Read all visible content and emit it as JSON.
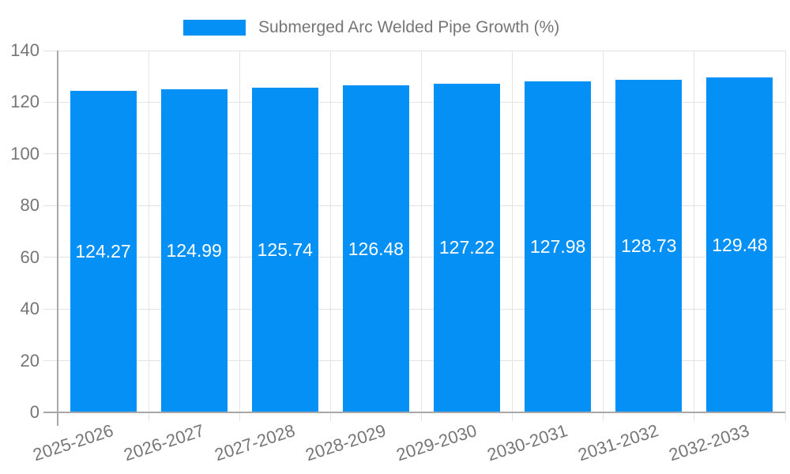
{
  "legend": {
    "label": "Submerged Arc Welded Pipe Growth (%)"
  },
  "chart_data": {
    "type": "bar",
    "title": "Submerged Arc Welded Pipe Growth (%)",
    "categories": [
      "2025-2026",
      "2026-2027",
      "2027-2028",
      "2028-2029",
      "2029-2030",
      "2030-2031",
      "2031-2032",
      "2032-2033"
    ],
    "values": [
      124.27,
      124.99,
      125.74,
      126.48,
      127.22,
      127.98,
      128.73,
      129.48
    ],
    "bar_labels": [
      "124.27",
      "124.99",
      "125.74",
      "126.48",
      "127.22",
      "127.98",
      "128.73",
      "129.48"
    ],
    "xlabel": "",
    "ylabel": "",
    "ylim": [
      0,
      140
    ],
    "yticks": [
      0,
      20,
      40,
      60,
      80,
      100,
      120,
      140
    ],
    "grid": true,
    "legend_position": "top-center",
    "x_tick_rotation_deg": -18,
    "colors": {
      "bar": "#0590f5",
      "bar_value_label": "#ffffff",
      "grid": "#e3e3e3",
      "axis": "#a8a8a8",
      "text": "#767676",
      "background": "#ffffff"
    }
  }
}
